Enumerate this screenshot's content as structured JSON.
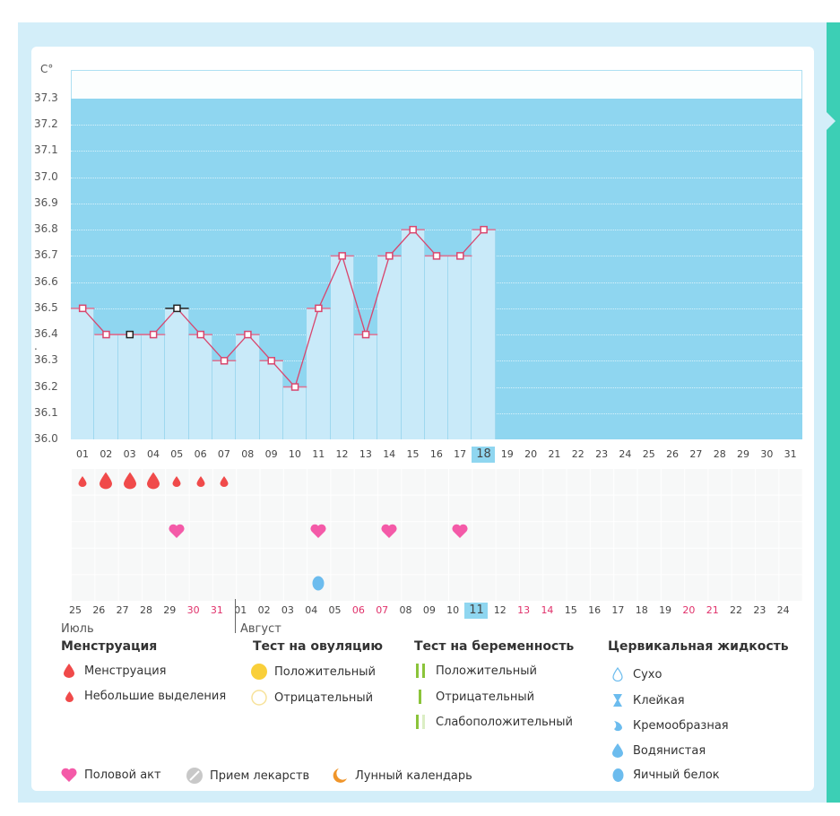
{
  "chart_data": {
    "type": "bar",
    "unit_label": "C°",
    "y_ticks": [
      "37.3",
      "37.2",
      "37.1",
      "37.0",
      "36.9",
      "36.8",
      "36.7",
      "36.6",
      "36.5",
      "36.4 .",
      "36.3",
      "36.2",
      "36.1",
      "36.0"
    ],
    "ylim": [
      36.0,
      37.3
    ],
    "days": [
      "01",
      "02",
      "03",
      "04",
      "05",
      "06",
      "07",
      "08",
      "09",
      "10",
      "11",
      "12",
      "13",
      "14",
      "15",
      "16",
      "17",
      "18",
      "19",
      "20",
      "21",
      "22",
      "23",
      "24",
      "25",
      "26",
      "27",
      "28",
      "29",
      "30",
      "31"
    ],
    "temperatures": [
      36.5,
      36.4,
      36.4,
      36.4,
      36.5,
      36.4,
      36.3,
      36.4,
      36.3,
      36.2,
      36.5,
      36.7,
      36.4,
      36.7,
      36.8,
      36.7,
      36.7,
      36.8
    ],
    "black_marker_days": [
      3,
      5
    ],
    "highlight_day": 18
  },
  "calendar": {
    "dates": [
      "25",
      "26",
      "27",
      "28",
      "29",
      "30",
      "31",
      "01",
      "02",
      "03",
      "04",
      "05",
      "06",
      "07",
      "08",
      "09",
      "10",
      "11",
      "12",
      "13",
      "14",
      "15",
      "16",
      "17",
      "18",
      "19",
      "20",
      "21",
      "22",
      "23",
      "24"
    ],
    "red_dates_idx": [
      5,
      6,
      12,
      13,
      19,
      20,
      26,
      27
    ],
    "highlight_idx": 17,
    "months": [
      "Июль",
      "Август"
    ],
    "menstruation": {
      "0": "small",
      "1": "big",
      "2": "big",
      "3": "big",
      "4": "small",
      "5": "small",
      "6": "small"
    },
    "intercourse_idx": [
      4,
      10,
      13,
      16
    ],
    "egg_white_idx": [
      10
    ]
  },
  "colors": {
    "blood": "#f04a4a",
    "heart": "#f45aa8",
    "fluid": "#6cbcee",
    "ovul": "#f9cf3a",
    "preg": "#8bc43a",
    "moon": "#f0952a"
  },
  "legend": {
    "menstruation": {
      "title": "Менструация",
      "items": [
        "Менструация",
        "Небольшие выделения"
      ]
    },
    "ovulation": {
      "title": "Тест на овуляцию",
      "items": [
        "Положительный",
        "Отрицательный"
      ]
    },
    "pregnancy": {
      "title": "Тест на беременность",
      "items": [
        "Положительный",
        "Отрицательный",
        "Слабоположительный"
      ]
    },
    "cervical": {
      "title": "Цервикальная жидкость",
      "items": [
        "Сухо",
        "Клейкая",
        "Кремообразная",
        "Водянистая",
        "Яичный белок"
      ]
    },
    "bottom": [
      "Половой акт",
      "Прием лекарств",
      "Лунный календарь"
    ]
  }
}
